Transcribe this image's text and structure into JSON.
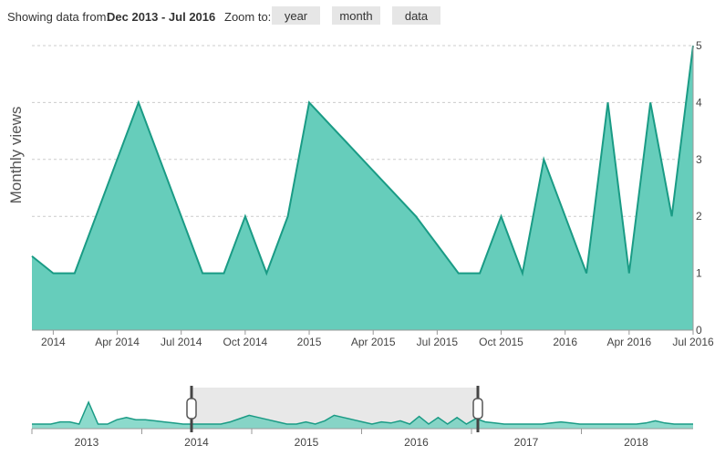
{
  "toolbar": {
    "showing_label": "Showing data from:",
    "range_text": "Dec 2013 - Jul 2016",
    "zoom_label": "Zoom to:",
    "buttons": [
      "year",
      "month",
      "data"
    ]
  },
  "chart_data": {
    "type": "area",
    "ylabel": "Monthly views",
    "ylim": [
      0,
      5
    ],
    "y_ticks": [
      "0",
      "1",
      "2",
      "3",
      "4",
      "5"
    ],
    "x_tick_labels": [
      "2014",
      "Apr 2014",
      "Jul 2014",
      "Oct 2014",
      "2015",
      "Apr 2015",
      "Jul 2015",
      "Oct 2015",
      "2016",
      "Apr 2016",
      "Jul 2016"
    ],
    "series": [
      {
        "x": [
          "Dec 2013",
          "Jan 2014",
          "Feb 2014",
          "Mar 2014",
          "Apr 2014",
          "May 2014",
          "Jun 2014",
          "Jul 2014",
          "Aug 2014",
          "Sep 2014",
          "Oct 2014",
          "Nov 2014",
          "Dec 2014",
          "Jan 2015",
          "Feb 2015",
          "Mar 2015",
          "Apr 2015",
          "May 2015",
          "Jun 2015",
          "Jul 2015",
          "Aug 2015",
          "Sep 2015",
          "Oct 2015",
          "Nov 2015",
          "Dec 2015",
          "Jan 2016",
          "Feb 2016",
          "Mar 2016",
          "Apr 2016",
          "May 2016",
          "Jun 2016",
          "Jul 2016"
        ],
        "values": [
          1.3,
          1,
          1,
          2,
          3,
          4,
          3,
          2,
          1,
          1,
          2,
          1,
          2,
          4,
          3.6,
          3.2,
          2.8,
          2.4,
          2,
          1.5,
          1,
          1,
          2,
          1,
          3,
          2,
          1,
          4,
          1,
          4,
          2,
          5
        ]
      }
    ],
    "navigator": {
      "x_tick_labels": [
        "2013",
        "2014",
        "2015",
        "2016",
        "2017",
        "2018"
      ],
      "selected_range": [
        "Dec 2013",
        "Jul 2016"
      ]
    },
    "colors": {
      "fill": "#66cdbb",
      "line": "#1a9b85",
      "grid": "#cccccc",
      "selection": "#e8e8e8"
    }
  }
}
